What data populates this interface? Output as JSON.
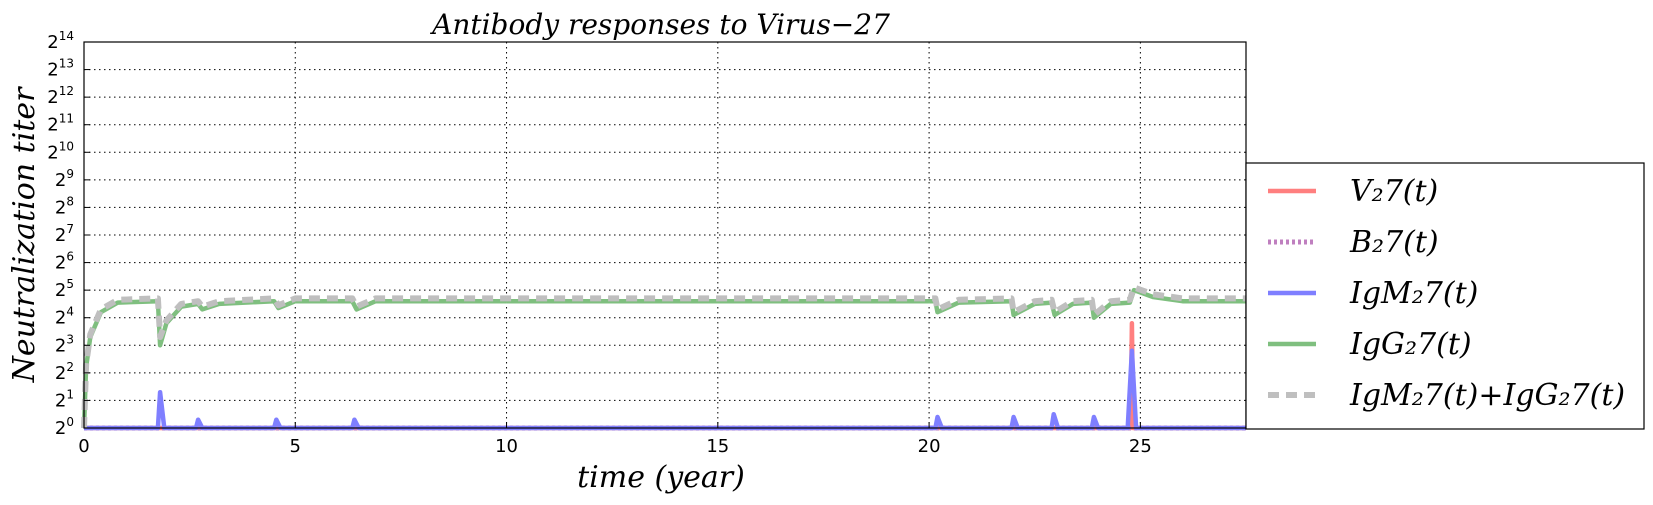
{
  "chart_data": {
    "type": "line",
    "title": "Antibody responses to Virus−27",
    "xlabel": "time (year)",
    "ylabel": "Neutralization  titer",
    "xlim": [
      0,
      27.5
    ],
    "ylim_log2": [
      0,
      14
    ],
    "y_scale": "log2",
    "grid": true,
    "legend_position": "right",
    "x_ticks": [
      0,
      5,
      10,
      15,
      20,
      25
    ],
    "x_tick_labels": [
      "0",
      "5",
      "10",
      "15",
      "20",
      "25"
    ],
    "y_ticks_log2": [
      0,
      1,
      2,
      3,
      4,
      5,
      6,
      7,
      8,
      9,
      10,
      11,
      12,
      13,
      14
    ],
    "y_tick_base": "2",
    "y_tick_exponents": [
      "0",
      "1",
      "2",
      "3",
      "4",
      "5",
      "6",
      "7",
      "8",
      "9",
      "10",
      "11",
      "12",
      "13",
      "14"
    ],
    "series": [
      {
        "name": "V_27(t)",
        "legend_label": "V₂7(t)",
        "color": "#ff7f7f",
        "style": "solid",
        "points_log2": [
          [
            0,
            0
          ],
          [
            24.75,
            0
          ],
          [
            24.77,
            0
          ],
          [
            24.8,
            3.8
          ],
          [
            24.83,
            0
          ],
          [
            27.5,
            0
          ]
        ]
      },
      {
        "name": "B_27(t)",
        "legend_label": "B₂7(t)",
        "color": "#bf7fbf",
        "style": "dotted",
        "points_log2": [
          [
            0,
            0
          ],
          [
            27.5,
            0
          ]
        ]
      },
      {
        "name": "IgM_27(t)",
        "legend_label": "IgM₂7(t)",
        "color": "#7f7fff",
        "style": "solid",
        "points_log2": [
          [
            0,
            0
          ],
          [
            1.75,
            0
          ],
          [
            1.8,
            1.3
          ],
          [
            1.9,
            0
          ],
          [
            2.65,
            0
          ],
          [
            2.7,
            0.3
          ],
          [
            2.8,
            0
          ],
          [
            4.5,
            0
          ],
          [
            4.55,
            0.3
          ],
          [
            4.65,
            0
          ],
          [
            6.35,
            0
          ],
          [
            6.4,
            0.3
          ],
          [
            6.5,
            0
          ],
          [
            20.15,
            0
          ],
          [
            20.2,
            0.4
          ],
          [
            20.3,
            0
          ],
          [
            21.95,
            0
          ],
          [
            22.0,
            0.4
          ],
          [
            22.1,
            0
          ],
          [
            22.9,
            0
          ],
          [
            22.95,
            0.5
          ],
          [
            23.05,
            0
          ],
          [
            23.85,
            0
          ],
          [
            23.9,
            0.4
          ],
          [
            24.0,
            0
          ],
          [
            24.7,
            0
          ],
          [
            24.8,
            2.8
          ],
          [
            24.9,
            0
          ],
          [
            27.5,
            0
          ]
        ]
      },
      {
        "name": "IgG_27(t)",
        "legend_label": "IgG₂7(t)",
        "color": "#7fbf7f",
        "style": "solid",
        "points_log2": [
          [
            0,
            0
          ],
          [
            0.05,
            2.2
          ],
          [
            0.15,
            3.3
          ],
          [
            0.4,
            4.2
          ],
          [
            0.8,
            4.55
          ],
          [
            1.75,
            4.6
          ],
          [
            1.8,
            3.0
          ],
          [
            1.95,
            3.8
          ],
          [
            2.3,
            4.4
          ],
          [
            2.7,
            4.5
          ],
          [
            2.8,
            4.3
          ],
          [
            3.2,
            4.5
          ],
          [
            4.5,
            4.6
          ],
          [
            4.6,
            4.35
          ],
          [
            5.0,
            4.6
          ],
          [
            6.35,
            4.6
          ],
          [
            6.45,
            4.3
          ],
          [
            6.9,
            4.6
          ],
          [
            20.15,
            4.6
          ],
          [
            20.2,
            4.2
          ],
          [
            20.7,
            4.55
          ],
          [
            21.95,
            4.6
          ],
          [
            22.0,
            4.1
          ],
          [
            22.5,
            4.5
          ],
          [
            22.9,
            4.55
          ],
          [
            22.97,
            4.1
          ],
          [
            23.4,
            4.5
          ],
          [
            23.85,
            4.55
          ],
          [
            23.9,
            4.0
          ],
          [
            24.3,
            4.5
          ],
          [
            24.75,
            4.55
          ],
          [
            24.85,
            5.0
          ],
          [
            25.3,
            4.75
          ],
          [
            26.0,
            4.6
          ],
          [
            27.5,
            4.6
          ]
        ]
      },
      {
        "name": "IgM_27(t)+IgG_27(t)",
        "legend_label": "IgM₂7(t)+IgG₂7(t)",
        "color": "#bfbfbf",
        "style": "dashed",
        "points_log2": [
          [
            0,
            0
          ],
          [
            0.05,
            2.3
          ],
          [
            0.15,
            3.4
          ],
          [
            0.4,
            4.3
          ],
          [
            0.8,
            4.65
          ],
          [
            1.75,
            4.7
          ],
          [
            1.8,
            3.3
          ],
          [
            1.95,
            3.9
          ],
          [
            2.3,
            4.5
          ],
          [
            2.7,
            4.6
          ],
          [
            2.8,
            4.4
          ],
          [
            3.2,
            4.6
          ],
          [
            4.5,
            4.7
          ],
          [
            4.6,
            4.45
          ],
          [
            5.0,
            4.7
          ],
          [
            6.35,
            4.7
          ],
          [
            6.45,
            4.4
          ],
          [
            6.9,
            4.7
          ],
          [
            20.15,
            4.7
          ],
          [
            20.2,
            4.3
          ],
          [
            20.7,
            4.65
          ],
          [
            21.95,
            4.7
          ],
          [
            22.0,
            4.2
          ],
          [
            22.5,
            4.6
          ],
          [
            22.9,
            4.65
          ],
          [
            22.97,
            4.2
          ],
          [
            23.4,
            4.6
          ],
          [
            23.85,
            4.65
          ],
          [
            23.9,
            4.1
          ],
          [
            24.3,
            4.6
          ],
          [
            24.75,
            4.65
          ],
          [
            24.85,
            5.1
          ],
          [
            25.3,
            4.85
          ],
          [
            26.0,
            4.7
          ],
          [
            27.5,
            4.7
          ]
        ]
      }
    ]
  }
}
